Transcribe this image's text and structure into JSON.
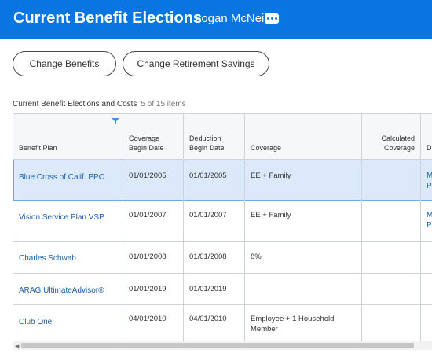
{
  "header": {
    "title": "Current Benefit Elections",
    "user": "Logan McNeil",
    "more_icon": "ellipsis-icon"
  },
  "buttons": {
    "change_benefits": "Change Benefits",
    "change_retirement": "Change Retirement Savings"
  },
  "table": {
    "caption": "Current Benefit Elections and Costs",
    "count": "5 of 15 items",
    "columns": {
      "plan": "Benefit Plan",
      "coverage_begin": [
        "Coverage",
        "Begin Date"
      ],
      "deduction_begin": [
        "Deduction",
        "Begin Date"
      ],
      "coverage": "Coverage",
      "calculated": [
        "Calculated",
        "Coverage"
      ],
      "partial": "D"
    },
    "rows": [
      {
        "plan": "Blue Cross of Calif. PPO",
        "coverage_begin": "01/01/2005",
        "deduction_begin": "01/01/2005",
        "coverage": "EE + Family",
        "coverage2": "",
        "extra1": "M",
        "extra2": "Pa"
      },
      {
        "plan": "Vision Service Plan VSP",
        "coverage_begin": "01/01/2007",
        "deduction_begin": "01/01/2007",
        "coverage": "EE + Family",
        "coverage2": "",
        "extra1": "M",
        "extra2": "Pa"
      },
      {
        "plan": "Charles Schwab",
        "coverage_begin": "01/01/2008",
        "deduction_begin": "01/01/2008",
        "coverage": "8%",
        "coverage2": "",
        "extra1": "",
        "extra2": ""
      },
      {
        "plan": "ARAG UltimateAdvisor®",
        "coverage_begin": "01/01/2019",
        "deduction_begin": "01/01/2019",
        "coverage": "",
        "coverage2": "",
        "extra1": "",
        "extra2": ""
      },
      {
        "plan": "Club One",
        "coverage_begin": "04/01/2010",
        "deduction_begin": "04/01/2010",
        "coverage": "Employee + 1 Household",
        "coverage2": "Member",
        "extra1": "",
        "extra2": ""
      }
    ]
  },
  "colors": {
    "header_bg": "#0875e1",
    "link": "#1a5ea8",
    "selected_row": "#dbe9fb"
  }
}
